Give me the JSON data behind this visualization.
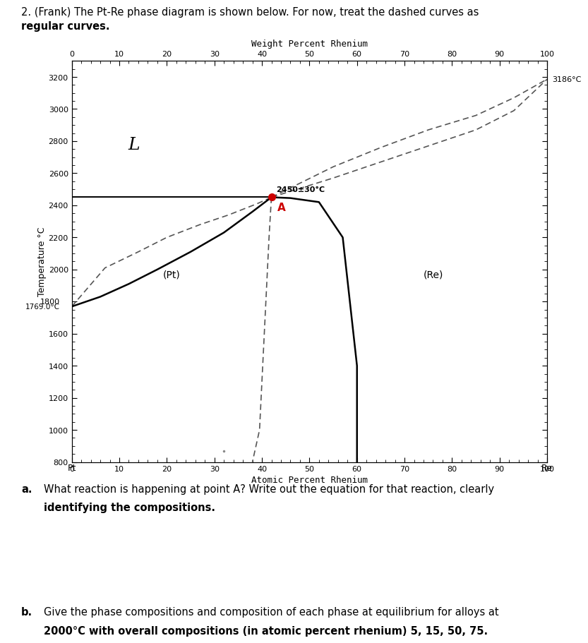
{
  "title_top": "Weight Percent Rhenium",
  "xlabel": "Atomic Percent Rhenium",
  "ylabel": "Temperature °C",
  "xlim": [
    0,
    100
  ],
  "ylim": [
    800,
    3300
  ],
  "yticks": [
    800,
    1000,
    1200,
    1400,
    1600,
    1800,
    2000,
    2200,
    2400,
    2600,
    2800,
    3000,
    3200
  ],
  "xticks": [
    0,
    10,
    20,
    30,
    40,
    50,
    60,
    70,
    80,
    90,
    100
  ],
  "weight_pct_ticks": [
    0,
    10,
    20,
    30,
    40,
    50,
    60,
    70,
    80,
    90,
    100
  ],
  "pt_melt": 1769.0,
  "re_melt": 3186,
  "point_A_x": 42,
  "point_A_y": 2450,
  "point_A_label": "2450±30°C",
  "label_L": "L",
  "label_Pt": "(Pt)",
  "label_Re": "(Re)",
  "label_pt_melt": "1769.0°C",
  "label_1800": "1800",
  "label_re_melt": "3186°C",
  "header_line1": "2. (Frank) The Pt-Re phase diagram is shown below. For now, treat the dashed curves as",
  "header_line2": "regular curves.",
  "question_a_bold": "a.",
  "question_a_text": " What reaction is happening at point A? Write out the equation for that reaction, clearly",
  "question_a_text2": "    identifying the compositions.",
  "question_b_bold": "b.",
  "question_b_text": " Give the phase compositions and composition of each phase at equilibrium for alloys at",
  "question_b_text2": "    2000°C with overall compositions (in atomic percent rhenium) 5, 15, 50, 75.",
  "bg_color": "#ffffff",
  "curve_color": "#000000",
  "dashed_color": "#555555",
  "point_A_color": "#cc0000",
  "separator_color": "#5a5a5a",
  "sol_pt_x": [
    0,
    6,
    12,
    18,
    25,
    32,
    38,
    42
  ],
  "sol_pt_y": [
    1769,
    1830,
    1910,
    2000,
    2110,
    2230,
    2360,
    2450
  ],
  "liq_pt_x": [
    0,
    7,
    14,
    20,
    27,
    33,
    39,
    42
  ],
  "liq_pt_y": [
    1769,
    2010,
    2110,
    2200,
    2280,
    2340,
    2410,
    2450
  ],
  "liq_re_x": [
    42,
    55,
    65,
    75,
    85,
    93,
    100
  ],
  "liq_re_y": [
    2450,
    2640,
    2760,
    2870,
    2960,
    3070,
    3186
  ],
  "sol_re_x": [
    42,
    55,
    65,
    75,
    85,
    93,
    100
  ],
  "sol_re_y": [
    2450,
    2570,
    2670,
    2770,
    2870,
    2990,
    3186
  ],
  "solvus_left_x": [
    42,
    41.5,
    41.0,
    40.5,
    40.0,
    39.5,
    38
  ],
  "solvus_left_y": [
    2450,
    2200,
    1900,
    1600,
    1300,
    1000,
    800
  ],
  "solvus_right_x": [
    42,
    46,
    52,
    57,
    60,
    60
  ],
  "solvus_right_y": [
    2450,
    2445,
    2420,
    2200,
    1400,
    800
  ]
}
